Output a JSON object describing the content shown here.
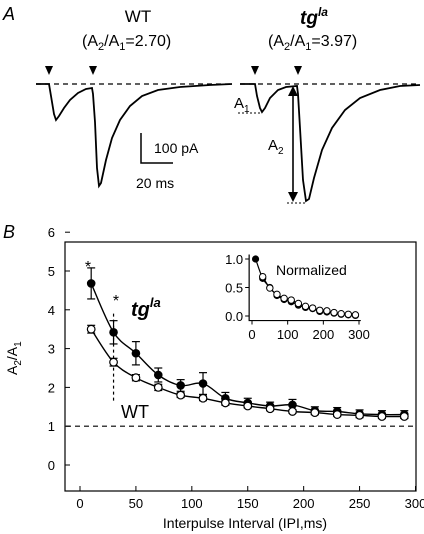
{
  "panel_a": {
    "label": "A",
    "wt": {
      "title": "WT",
      "ratio_prefix": "(A",
      "sub2": "2",
      "slash": "/A",
      "sub1": "1",
      "ratio_value": "=2.70)"
    },
    "tg": {
      "title": "tg",
      "title_sup": "la",
      "ratio_prefix": "(A",
      "sub2": "2",
      "slash": "/A",
      "sub1": "1",
      "ratio_value": "=3.97)"
    },
    "a1": {
      "main": "A",
      "sub": "1"
    },
    "a2": {
      "main": "A",
      "sub": "2"
    },
    "scale_current": "100 pA",
    "scale_time": "20 ms"
  },
  "panel_b": {
    "label": "B"
  },
  "chart_data": [
    {
      "type": "scatter",
      "title": "",
      "xlabel": "Interpulse Interval (IPI,ms)",
      "ylabel": "A2/A1",
      "ylabel_parts": {
        "main": "A",
        "sub2": "2",
        "slash": "/A",
        "sub1": "1"
      },
      "xlim": [
        -10,
        300
      ],
      "ylim": [
        0,
        6
      ],
      "xticks": [
        0,
        50,
        100,
        150,
        200,
        250,
        300
      ],
      "yticks": [
        0,
        1,
        2,
        3,
        4,
        5,
        6
      ],
      "reference_line": 1,
      "annotations": [
        "*",
        "*"
      ],
      "series": [
        {
          "name": "tg",
          "name_sup": "la",
          "marker": "filled-circle",
          "x": [
            10,
            30,
            50,
            70,
            90,
            110,
            130,
            150,
            170,
            190,
            210,
            230,
            250,
            270,
            290
          ],
          "y": [
            4.68,
            3.42,
            2.88,
            2.32,
            2.05,
            2.1,
            1.72,
            1.6,
            1.52,
            1.55,
            1.4,
            1.38,
            1.32,
            1.3,
            1.3
          ],
          "err": [
            0.4,
            0.3,
            0.3,
            0.18,
            0.15,
            0.28,
            0.15,
            0.12,
            0.1,
            0.14,
            0.1,
            0.1,
            0.1,
            0.1,
            0.1
          ]
        },
        {
          "name": "WT",
          "marker": "open-circle",
          "x": [
            10,
            30,
            50,
            70,
            90,
            110,
            130,
            150,
            170,
            190,
            210,
            230,
            250,
            270,
            290
          ],
          "y": [
            3.5,
            2.65,
            2.25,
            2.0,
            1.8,
            1.72,
            1.6,
            1.52,
            1.45,
            1.38,
            1.35,
            1.3,
            1.28,
            1.25,
            1.25
          ],
          "err": [
            0.1,
            0.1,
            0.08,
            0.08,
            0.06,
            0.06,
            0.06,
            0.05,
            0.05,
            0.05,
            0.05,
            0.05,
            0.05,
            0.05,
            0.05
          ]
        }
      ]
    },
    {
      "type": "scatter",
      "title": "Normalized",
      "xlim": [
        0,
        300
      ],
      "ylim": [
        0,
        1
      ],
      "xticks": [
        0,
        100,
        200,
        300
      ],
      "yticks": [
        0.0,
        0.5,
        1.0
      ],
      "ytick_labels": [
        "0.0",
        "0.5",
        "1.0"
      ],
      "series": [
        {
          "name": "tg",
          "marker": "filled-circle",
          "x": [
            10,
            30,
            50,
            70,
            90,
            110,
            130,
            150,
            170,
            190,
            210,
            230,
            250,
            270,
            290
          ],
          "y": [
            1.0,
            0.66,
            0.5,
            0.36,
            0.29,
            0.25,
            0.19,
            0.15,
            0.13,
            0.08,
            0.07,
            0.05,
            0.03,
            0.02,
            0.01
          ]
        },
        {
          "name": "WT",
          "marker": "open-circle",
          "x": [
            30,
            50,
            70,
            90,
            110,
            130,
            150,
            170,
            190,
            210,
            230,
            250,
            270,
            290
          ],
          "y": [
            0.69,
            0.49,
            0.38,
            0.31,
            0.28,
            0.22,
            0.17,
            0.14,
            0.1,
            0.09,
            0.06,
            0.04,
            0.03,
            0.02
          ]
        }
      ]
    }
  ]
}
